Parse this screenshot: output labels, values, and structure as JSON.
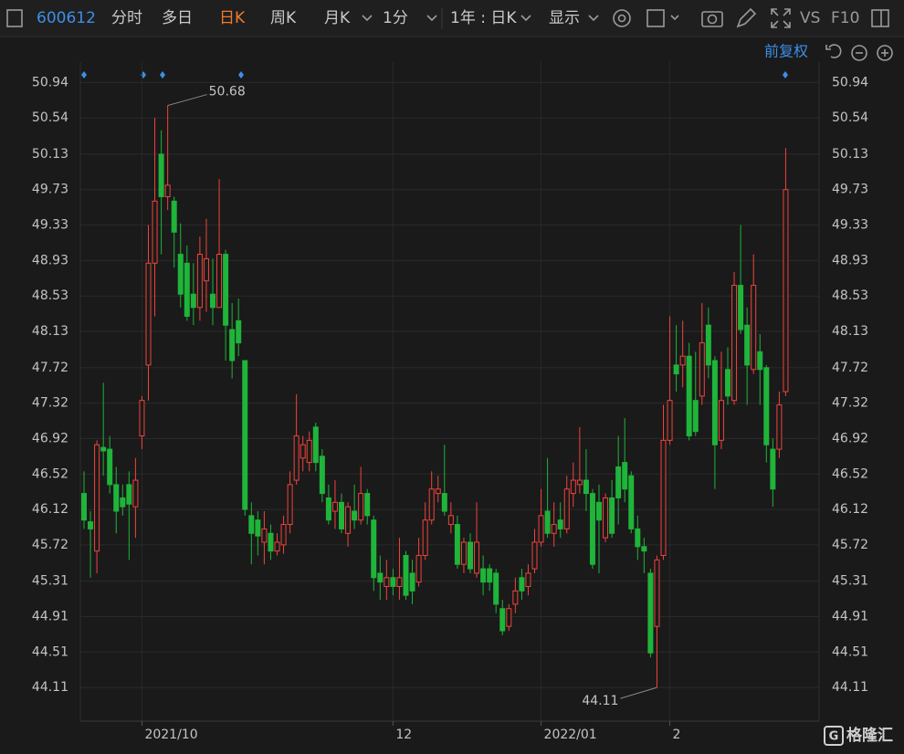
{
  "toolbar": {
    "code": "600612",
    "tabs": [
      "分时",
      "多日",
      "日K",
      "周K",
      "月K",
      "1分"
    ],
    "period": "1年 : 日K",
    "display": "显示",
    "vs": "VS",
    "f10": "F10",
    "adjust": "前复权",
    "logo": "格隆汇"
  },
  "chart_data": {
    "type": "candlestick",
    "categories": [
      null,
      null,
      null,
      null,
      null,
      null,
      null,
      null,
      null,
      "2021/10",
      null,
      null,
      null,
      null,
      null,
      null,
      null,
      null,
      null,
      null,
      null,
      null,
      null,
      null,
      null,
      null,
      null,
      null,
      null,
      null,
      null,
      null,
      null,
      null,
      null,
      null,
      null,
      null,
      null,
      null,
      null,
      null,
      null,
      null,
      null,
      null,
      null,
      null,
      "12",
      null,
      null,
      null,
      null,
      null,
      null,
      null,
      null,
      null,
      null,
      null,
      null,
      null,
      null,
      null,
      null,
      null,
      null,
      null,
      null,
      null,
      null,
      "2022/01",
      null,
      null,
      null,
      null,
      null,
      null,
      null,
      null,
      null,
      null,
      null,
      null,
      null,
      null,
      null,
      null,
      null,
      null,
      null,
      "2",
      null,
      null,
      null,
      null,
      null,
      null,
      null,
      null,
      null,
      null,
      null,
      null,
      null,
      null,
      null,
      null,
      null,
      null
    ],
    "open": [
      46.3,
      45.98,
      45.65,
      46.82,
      46.8,
      46.4,
      46.25,
      46.4,
      46.15,
      46.95,
      47.75,
      48.9,
      50.13,
      49.65,
      49.6,
      49.0,
      48.9,
      48.55,
      48.4,
      48.7,
      48.55,
      48.4,
      49.0,
      48.15,
      48.25,
      47.8,
      46.05,
      46.0,
      45.75,
      45.85,
      45.65,
      45.72,
      45.95,
      46.45,
      46.7,
      46.65,
      47.05,
      46.72,
      46.25,
      46.1,
      46.2,
      45.85,
      46.1,
      46.0,
      46.3,
      46.0,
      45.4,
      45.25,
      45.35,
      45.25,
      45.6,
      45.4,
      45.3,
      45.6,
      46.0,
      46.3,
      46.3,
      45.95,
      45.95,
      45.5,
      45.75,
      45.4,
      45.45,
      45.45,
      45.4,
      45.0,
      44.8,
      45.05,
      45.35,
      45.25,
      45.45,
      45.75,
      46.1,
      45.85,
      46.0,
      45.9,
      46.3,
      46.4,
      46.45,
      46.3,
      46.2,
      45.8,
      46.25,
      46.6,
      46.65,
      46.5,
      45.9,
      45.7,
      45.4,
      44.8,
      45.6,
      46.9,
      47.75,
      47.75,
      47.85,
      47.35,
      47.4,
      48.2,
      47.8,
      46.9,
      47.7,
      47.35,
      48.65,
      48.2,
      47.7,
      47.9,
      47.72,
      46.8,
      46.8,
      47.45
    ],
    "close": [
      46.0,
      45.9,
      46.85,
      46.78,
      46.4,
      46.1,
      46.15,
      46.18,
      46.45,
      47.35,
      48.9,
      49.6,
      49.65,
      49.78,
      49.25,
      48.55,
      48.3,
      48.4,
      49.0,
      48.95,
      48.4,
      49.0,
      48.2,
      47.8,
      48.0,
      46.12,
      45.85,
      45.82,
      45.9,
      45.65,
      45.75,
      45.95,
      46.4,
      46.95,
      46.85,
      46.9,
      46.65,
      46.3,
      46.0,
      46.2,
      45.9,
      46.15,
      46.0,
      46.3,
      46.05,
      45.35,
      45.3,
      45.35,
      45.25,
      45.35,
      45.15,
      45.2,
      45.6,
      46.0,
      46.35,
      46.35,
      46.1,
      46.05,
      45.5,
      45.75,
      45.45,
      45.75,
      45.3,
      45.3,
      45.05,
      44.75,
      45.0,
      45.2,
      45.2,
      45.4,
      45.75,
      46.05,
      45.85,
      45.95,
      45.9,
      46.35,
      46.45,
      46.45,
      46.3,
      45.5,
      46.0,
      46.25,
      45.85,
      46.25,
      46.35,
      45.9,
      45.7,
      45.65,
      44.5,
      45.55,
      46.9,
      47.35,
      47.65,
      47.85,
      46.95,
      47.0,
      48.0,
      47.75,
      46.85,
      47.35,
      47.4,
      48.65,
      48.15,
      47.75,
      48.65,
      47.7,
      46.85,
      46.35,
      47.3,
      49.73
    ],
    "high": [
      46.55,
      46.1,
      46.9,
      47.55,
      46.95,
      46.6,
      46.4,
      46.55,
      46.7,
      47.4,
      49.33,
      50.54,
      50.4,
      50.68,
      49.65,
      49.35,
      49.1,
      48.9,
      49.2,
      49.4,
      48.95,
      49.85,
      49.05,
      48.45,
      48.5,
      47.8,
      46.2,
      46.1,
      46.1,
      45.95,
      45.85,
      46.05,
      46.55,
      47.42,
      46.95,
      47.0,
      47.1,
      46.8,
      46.4,
      46.45,
      46.3,
      46.2,
      46.4,
      46.6,
      46.35,
      46.05,
      45.6,
      45.55,
      45.45,
      45.8,
      45.65,
      45.55,
      45.8,
      46.2,
      46.55,
      46.5,
      46.85,
      46.2,
      46.05,
      45.8,
      45.85,
      46.2,
      45.6,
      45.5,
      45.45,
      45.1,
      45.05,
      45.35,
      45.45,
      45.5,
      45.9,
      46.35,
      46.7,
      46.2,
      46.2,
      46.5,
      46.65,
      47.05,
      46.8,
      46.35,
      46.4,
      46.3,
      46.45,
      46.95,
      47.15,
      46.55,
      46.05,
      45.8,
      45.45,
      45.6,
      47.3,
      48.3,
      48.2,
      48.25,
      48.0,
      47.9,
      48.45,
      48.4,
      47.85,
      47.9,
      47.95,
      48.8,
      49.33,
      48.4,
      49.0,
      48.1,
      47.75,
      46.92,
      47.45,
      50.2
    ],
    "low": [
      45.9,
      45.35,
      45.4,
      46.5,
      46.3,
      45.85,
      46.05,
      45.55,
      45.8,
      46.8,
      47.35,
      48.3,
      49.0,
      49.5,
      48.85,
      48.4,
      48.25,
      48.2,
      48.25,
      48.35,
      48.2,
      48.4,
      47.8,
      47.6,
      47.85,
      46.05,
      45.5,
      45.6,
      45.5,
      45.55,
      45.6,
      45.62,
      45.85,
      46.4,
      46.55,
      46.55,
      46.55,
      46.2,
      45.95,
      45.9,
      45.85,
      45.7,
      45.9,
      45.95,
      45.95,
      45.2,
      45.1,
      45.1,
      45.15,
      45.1,
      45.1,
      45.05,
      45.25,
      45.55,
      45.95,
      46.2,
      46.05,
      45.85,
      45.45,
      45.4,
      45.4,
      45.35,
      45.15,
      45.2,
      44.95,
      44.7,
      44.75,
      44.95,
      45.1,
      45.15,
      45.4,
      45.7,
      45.8,
      45.7,
      45.8,
      45.85,
      46.15,
      46.3,
      46.1,
      45.45,
      45.4,
      45.75,
      45.8,
      45.95,
      46.2,
      45.85,
      45.55,
      45.4,
      44.45,
      44.11,
      45.55,
      46.85,
      47.45,
      47.5,
      46.9,
      46.95,
      47.3,
      47.6,
      46.35,
      46.8,
      47.3,
      47.3,
      48.1,
      47.3,
      47.65,
      47.3,
      46.65,
      46.15,
      46.7,
      47.4
    ],
    "up_color": "#f0443c",
    "down_color": "#1fb43a",
    "ylim": [
      43.73,
      51.17
    ],
    "yticks": [
      44.11,
      44.51,
      44.91,
      45.31,
      45.72,
      46.12,
      46.52,
      46.92,
      47.32,
      47.72,
      48.13,
      48.53,
      48.93,
      49.33,
      49.73,
      50.13,
      50.54,
      50.94
    ],
    "grid": true
  }
}
